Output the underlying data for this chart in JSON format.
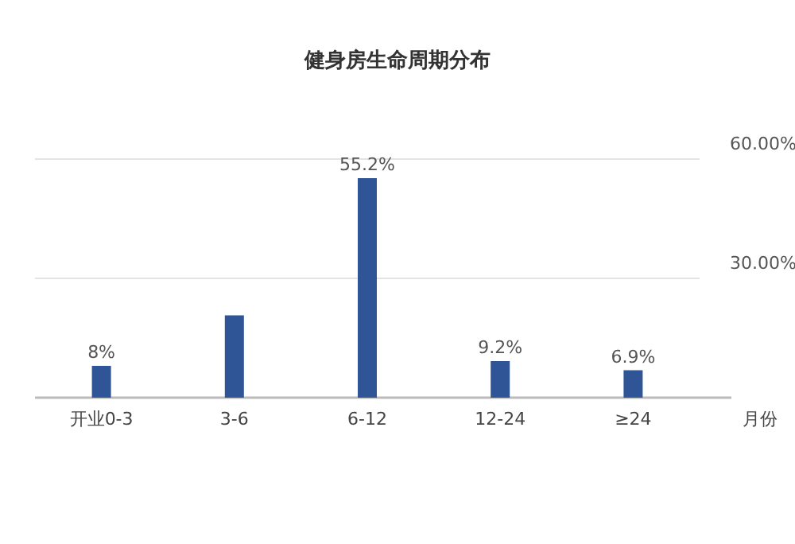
{
  "chart_data": {
    "type": "bar",
    "title": "健身房生命周期分布",
    "xlabel": "月份",
    "categories": [
      "开业0-3",
      "3-6",
      "6-12",
      "12-24",
      "≥24"
    ],
    "values": [
      8,
      20.7,
      55.2,
      9.2,
      6.9
    ],
    "value_labels": [
      "8%",
      null,
      "55.2%",
      "9.2%",
      "6.9%"
    ],
    "color": "#2f5597",
    "ylim": [
      0,
      60
    ],
    "yticks": [
      {
        "value": 30,
        "label": "30.00%"
      },
      {
        "value": 60,
        "label": "60.00%"
      }
    ],
    "grid": "y"
  }
}
